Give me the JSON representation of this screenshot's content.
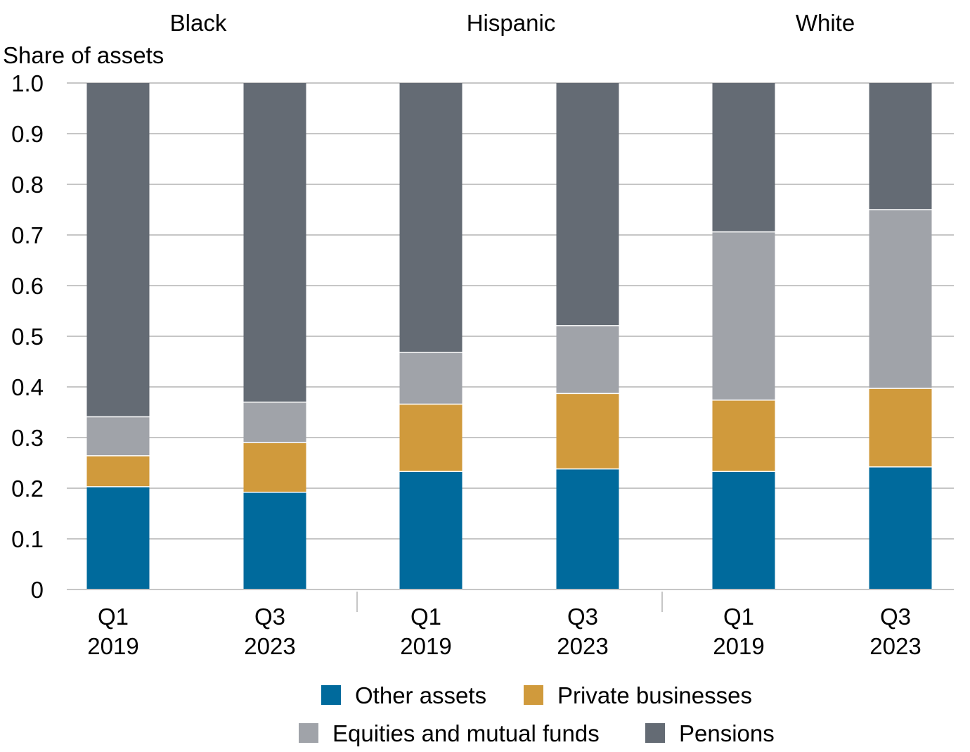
{
  "chart_data": {
    "type": "bar",
    "stacked": true,
    "ylabel": "Share of assets",
    "ylim": [
      0,
      1.0
    ],
    "yticks": [
      "0",
      "0.1",
      "0.2",
      "0.3",
      "0.4",
      "0.5",
      "0.6",
      "0.7",
      "0.8",
      "0.9",
      "1.0"
    ],
    "grid": true,
    "legend_position": "bottom",
    "groups": [
      {
        "label": "Black",
        "categories": [
          {
            "line1": "Q1",
            "line2": "2019"
          },
          {
            "line1": "Q3",
            "line2": "2023"
          }
        ]
      },
      {
        "label": "Hispanic",
        "categories": [
          {
            "line1": "Q1",
            "line2": "2019"
          },
          {
            "line1": "Q3",
            "line2": "2023"
          }
        ]
      },
      {
        "label": "White",
        "categories": [
          {
            "line1": "Q1",
            "line2": "2019"
          },
          {
            "line1": "Q3",
            "line2": "2023"
          }
        ]
      }
    ],
    "series": [
      {
        "name": "Other assets",
        "color": "#006a9c",
        "values": [
          0.203,
          0.192,
          0.233,
          0.238,
          0.233,
          0.242
        ]
      },
      {
        "name": "Private businesses",
        "color": "#d09a3c",
        "values": [
          0.061,
          0.098,
          0.133,
          0.149,
          0.141,
          0.155
        ]
      },
      {
        "name": "Equities and mutual funds",
        "color": "#a0a3a9",
        "values": [
          0.077,
          0.08,
          0.102,
          0.134,
          0.332,
          0.353
        ]
      },
      {
        "name": "Pensions",
        "color": "#646b74",
        "values": [
          0.659,
          0.63,
          0.532,
          0.479,
          0.294,
          0.25
        ]
      }
    ],
    "legend_rows": [
      [
        0,
        1
      ],
      [
        2,
        3
      ]
    ]
  }
}
